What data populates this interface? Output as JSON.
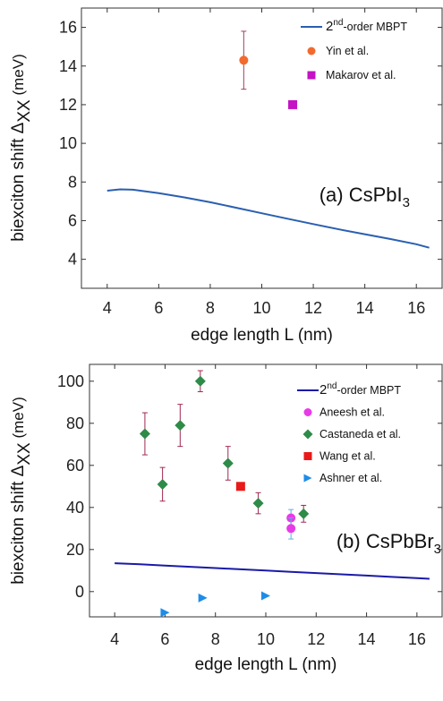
{
  "chart_data": [
    {
      "type": "scatter",
      "panel_label": {
        "prefix": "(a) CsPbI",
        "sub": "3"
      },
      "xlabel": "edge length L (nm)",
      "ylabel": {
        "main": "biexciton shift",
        "symbol": "Δ",
        "sub": "XX",
        "unit": "(meV)"
      },
      "xlim": [
        3,
        17
      ],
      "ylim": [
        2.5,
        17
      ],
      "xticks": [
        4,
        6,
        8,
        10,
        12,
        14,
        16
      ],
      "yticks": [
        4,
        6,
        8,
        10,
        12,
        14,
        16
      ],
      "grid": false,
      "legend_position": "top-right",
      "series": [
        {
          "name": "2nd-order MBPT",
          "name_main": "2",
          "name_sup": "nd",
          "name_rest": "-order MBPT",
          "kind": "line",
          "color": "#2a5fb0",
          "x": [
            4.0,
            4.5,
            5.0,
            6.0,
            7.0,
            8.0,
            9.0,
            10.0,
            11.0,
            12.0,
            13.0,
            14.0,
            15.0,
            16.0,
            16.5
          ],
          "y": [
            7.55,
            7.62,
            7.6,
            7.42,
            7.2,
            6.95,
            6.67,
            6.38,
            6.1,
            5.82,
            5.55,
            5.3,
            5.05,
            4.78,
            4.6
          ]
        },
        {
          "name": "Yin et al.",
          "kind": "points",
          "marker": "circle",
          "color": "#f26a2e",
          "x": [
            9.3
          ],
          "y": [
            14.3
          ],
          "err": [
            1.5
          ],
          "err_color": "#a04060"
        },
        {
          "name": "Makarov et al.",
          "kind": "points",
          "marker": "square",
          "color": "#c412c4",
          "x": [
            11.2
          ],
          "y": [
            12.0
          ]
        }
      ]
    },
    {
      "type": "scatter",
      "panel_label": {
        "prefix": "(b) CsPbBr",
        "sub": "3"
      },
      "xlabel": "edge length L (nm)",
      "ylabel": {
        "main": "biexciton shift",
        "symbol": "Δ",
        "sub": "XX",
        "unit": "(meV)"
      },
      "xlim": [
        3,
        17
      ],
      "ylim": [
        -12,
        108
      ],
      "xticks": [
        4,
        6,
        8,
        10,
        12,
        14,
        16
      ],
      "yticks": [
        0,
        20,
        40,
        60,
        80,
        100
      ],
      "grid": false,
      "legend_position": "top-right",
      "series": [
        {
          "name": "2nd-order MBPT",
          "name_main": "2",
          "name_sup": "nd",
          "name_rest": "-order MBPT",
          "kind": "line",
          "color": "#1a1aa8",
          "x": [
            4.0,
            5.0,
            6.0,
            7.0,
            8.0,
            9.0,
            10.0,
            11.0,
            12.0,
            13.0,
            14.0,
            15.0,
            16.0,
            16.5
          ],
          "y": [
            13.5,
            13.0,
            12.4,
            11.8,
            11.2,
            10.6,
            10.0,
            9.4,
            8.8,
            8.2,
            7.6,
            7.0,
            6.4,
            6.1
          ]
        },
        {
          "name": "Aneesh et al.",
          "kind": "points",
          "marker": "circle",
          "color": "#e83ae8",
          "x": [
            11.0,
            11.0
          ],
          "y": [
            35,
            30
          ],
          "err": [
            4,
            5
          ],
          "err_color": "#58b0e0"
        },
        {
          "name": "Castaneda et al.",
          "kind": "points",
          "marker": "diamond",
          "color": "#2e8b48",
          "x": [
            5.2,
            5.9,
            6.6,
            7.4,
            8.5,
            9.7,
            11.5
          ],
          "y": [
            75,
            51,
            79,
            100,
            61,
            42,
            37
          ],
          "err": [
            10,
            8,
            10,
            5,
            8,
            5,
            4
          ],
          "err_color": "#a02850"
        },
        {
          "name": "Wang et al.",
          "kind": "points",
          "marker": "square",
          "color": "#e81a1a",
          "x": [
            9.0
          ],
          "y": [
            50
          ]
        },
        {
          "name": "Ashner et al.",
          "kind": "points",
          "marker": "triangle-right",
          "color": "#1e8ce8",
          "x": [
            6.0,
            7.5,
            10.0
          ],
          "y": [
            -10,
            -3,
            -2
          ]
        }
      ]
    }
  ]
}
